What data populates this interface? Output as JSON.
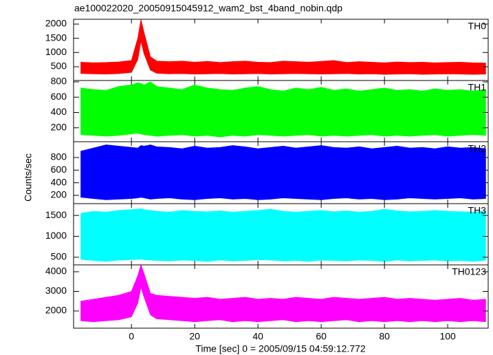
{
  "figure": {
    "title": "ae100022020_20050915045912_wam2_bst_4band_nobin.qdp",
    "ylabel": "Counts/sec"
  },
  "x_axis": {
    "label": "Time [sec] 0 = 2005/09/15 04:59:12.772",
    "xlim": [
      -18.3,
      112.8
    ],
    "xticks": [
      0,
      20,
      40,
      60,
      80,
      100
    ],
    "values": [
      -16,
      -12,
      -8,
      -4,
      0,
      2,
      3,
      4,
      6,
      8,
      12,
      16,
      20,
      24,
      28,
      32,
      36,
      40,
      44,
      48,
      52,
      56,
      60,
      64,
      68,
      72,
      76,
      80,
      84,
      88,
      92,
      96,
      100,
      104,
      108,
      112
    ]
  },
  "chart_data": [
    {
      "type": "band",
      "label": "TH0",
      "color": "#ff0000",
      "ylim": [
        16,
        2170
      ],
      "yticks": [
        500,
        1000,
        1500,
        2000
      ],
      "high": [
        660,
        640,
        650,
        670,
        720,
        1500,
        2160,
        1700,
        850,
        700,
        680,
        700,
        660,
        690,
        650,
        680,
        700,
        660,
        650,
        700,
        680,
        660,
        690,
        720,
        650,
        680,
        660,
        640,
        670,
        650,
        660,
        640,
        650,
        660,
        640,
        630
      ],
      "low": [
        260,
        250,
        240,
        260,
        300,
        750,
        1400,
        950,
        380,
        270,
        250,
        260,
        240,
        250,
        260,
        240,
        250,
        260,
        240,
        250,
        260,
        250,
        240,
        250,
        260,
        240,
        250,
        230,
        240,
        250,
        230,
        240,
        250,
        240,
        230,
        240
      ]
    },
    {
      "type": "band",
      "label": "TH1",
      "color": "#00ff00",
      "ylim": [
        18,
        818
      ],
      "yticks": [
        200,
        400,
        600,
        800
      ],
      "high": [
        720,
        700,
        690,
        740,
        760,
        790,
        780,
        760,
        800,
        740,
        720,
        700,
        760,
        720,
        700,
        690,
        720,
        740,
        700,
        680,
        720,
        700,
        730,
        690,
        710,
        680,
        700,
        720,
        690,
        700,
        680,
        710,
        690,
        700,
        680,
        700
      ],
      "low": [
        110,
        100,
        90,
        100,
        120,
        130,
        120,
        110,
        100,
        90,
        100,
        110,
        90,
        100,
        80,
        100,
        90,
        110,
        100,
        90,
        100,
        110,
        90,
        100,
        90,
        100,
        110,
        90,
        100,
        90,
        100,
        110,
        90,
        100,
        110,
        100
      ]
    },
    {
      "type": "band",
      "label": "TH2",
      "color": "#0000ff",
      "ylim": [
        69,
        1050
      ],
      "yticks": [
        200,
        400,
        600,
        800
      ],
      "high": [
        900,
        950,
        1000,
        980,
        960,
        950,
        990,
        980,
        1000,
        970,
        960,
        940,
        980,
        950,
        960,
        990,
        970,
        940,
        960,
        980,
        950,
        970,
        990,
        960,
        950,
        970,
        940,
        960,
        980,
        950,
        960,
        940,
        970,
        950,
        960,
        940
      ],
      "low": [
        170,
        150,
        130,
        140,
        150,
        160,
        170,
        160,
        140,
        150,
        160,
        140,
        130,
        150,
        160,
        140,
        150,
        130,
        140,
        160,
        150,
        140,
        130,
        150,
        160,
        140,
        150,
        130,
        140,
        160,
        150,
        140,
        150,
        160,
        140,
        150
      ]
    },
    {
      "type": "band",
      "label": "TH3",
      "color": "#00ffff",
      "ylim": [
        317,
        1783
      ],
      "yticks": [
        500,
        1000,
        1500
      ],
      "high": [
        1550,
        1600,
        1580,
        1620,
        1640,
        1650,
        1660,
        1640,
        1620,
        1600,
        1580,
        1620,
        1600,
        1590,
        1610,
        1580,
        1600,
        1620,
        1650,
        1600,
        1580,
        1600,
        1620,
        1590,
        1610,
        1580,
        1600,
        1650,
        1610,
        1590,
        1600,
        1620,
        1600,
        1590,
        1580,
        1600
      ],
      "low": [
        450,
        420,
        400,
        430,
        440,
        450,
        460,
        440,
        430,
        420,
        410,
        430,
        420,
        400,
        430,
        410,
        420,
        440,
        430,
        410,
        420,
        400,
        430,
        420,
        410,
        430,
        420,
        400,
        430,
        410,
        420,
        430,
        410,
        420,
        400,
        430
      ]
    },
    {
      "type": "band",
      "label": "TH0123",
      "color": "#ff00ff",
      "ylim": [
        1123,
        4350
      ],
      "yticks": [
        2000,
        3000,
        4000
      ],
      "high": [
        2500,
        2600,
        2700,
        2800,
        3000,
        3800,
        4350,
        3900,
        2900,
        2800,
        2750,
        2700,
        2650,
        2700,
        2600,
        2650,
        2700,
        2600,
        2650,
        2600,
        2700,
        2650,
        2600,
        2700,
        2650,
        2600,
        2650,
        2700,
        2600,
        2650,
        2600,
        2550,
        2600,
        2650,
        2550,
        2600
      ],
      "low": [
        1500,
        1450,
        1500,
        1550,
        1700,
        2400,
        3200,
        2700,
        1800,
        1600,
        1550,
        1500,
        1450,
        1500,
        1550,
        1450,
        1500,
        1450,
        1500,
        1550,
        1450,
        1500,
        1450,
        1500,
        1550,
        1450,
        1500,
        1450,
        1500,
        1450,
        1500,
        1450,
        1500,
        1450,
        1500,
        1450
      ]
    }
  ]
}
